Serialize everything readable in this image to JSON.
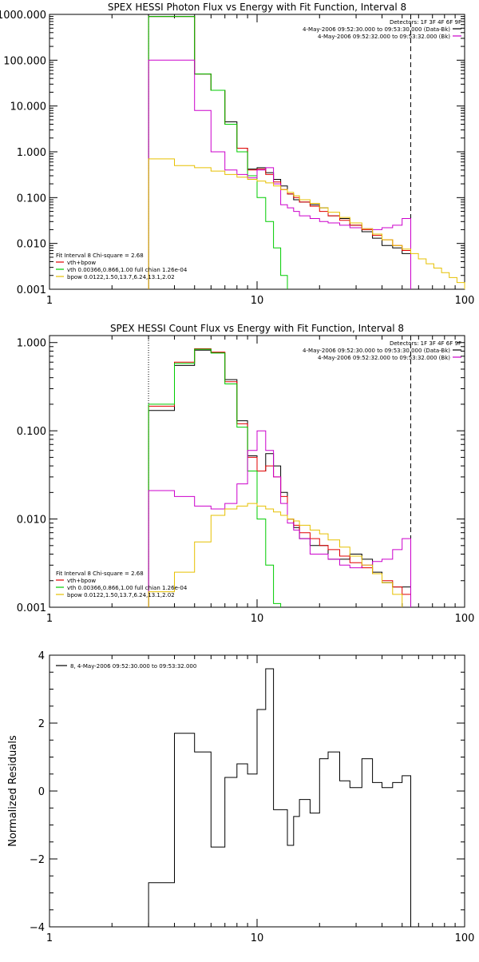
{
  "chart_data": [
    {
      "type": "line",
      "title": "SPEX HESSI Photon Flux vs Energy with Fit Function, Interval 8",
      "xscale": "log",
      "yscale": "log",
      "xlim": [
        1,
        100
      ],
      "ylim": [
        0.001,
        1000
      ],
      "x_tick_labels": [
        "1",
        "10",
        "100"
      ],
      "y_tick_labels": [
        "0.001",
        "0.010",
        "0.100",
        "1.000",
        "10.000",
        "100.000",
        "1000.000"
      ],
      "legend_topright": {
        "header": "Detectors: 1F 3F 4F 6F 9F",
        "entries": [
          {
            "text": "4-May-2006 09:52:30.000 to 09:53:30.000 (Data-Bk)",
            "color": "#000000"
          },
          {
            "text": "4-May-2006 09:52:32.000 to 09:53:32.000 (Bk)",
            "color": "#cc00cc"
          }
        ]
      },
      "legend_bottomleft": {
        "header": "Fit Interval 8   Chi-square = 2.68",
        "entries": [
          {
            "text": "vth+bpow",
            "color": "#e00000"
          },
          {
            "text": "vth 0.00366,0.866,1.00  full chian 1.26e-04",
            "color": "#00cc00"
          },
          {
            "text": "bpow 0.0122,1.50,13.7,6.24,13.1,2.02",
            "color": "#e6c000"
          }
        ]
      },
      "vlines": [
        {
          "x": 3.0,
          "style": "dotted",
          "color": "#000000"
        },
        {
          "x": 55.0,
          "style": "dashed",
          "color": "#000000"
        }
      ],
      "bin_edges": [
        3,
        4,
        5,
        6,
        7,
        8,
        9,
        10,
        11,
        12,
        13,
        14,
        15,
        16,
        18,
        20,
        22,
        25,
        28,
        32,
        36,
        40,
        45,
        50,
        55
      ],
      "series": [
        {
          "name": "Data-Bk",
          "color": "#000000",
          "x_range": [
            3,
            55
          ],
          "values": [
            900,
            900,
            50,
            22,
            4.5,
            1.2,
            0.42,
            0.45,
            0.35,
            0.25,
            0.18,
            0.12,
            0.09,
            0.08,
            0.07,
            0.06,
            0.04,
            0.035,
            0.025,
            0.018,
            0.013,
            0.009,
            0.008,
            0.006
          ]
        },
        {
          "name": "vth+bpow",
          "color": "#e00000",
          "x_range": [
            3,
            55
          ],
          "values": [
            900,
            900,
            50,
            22,
            4.0,
            1.2,
            0.4,
            0.42,
            0.32,
            0.22,
            0.15,
            0.12,
            0.1,
            0.08,
            0.065,
            0.05,
            0.04,
            0.032,
            0.025,
            0.02,
            0.015,
            0.012,
            0.009,
            0.007
          ]
        },
        {
          "name": "vth",
          "color": "#00cc00",
          "x_range": [
            3,
            14
          ],
          "values": [
            900,
            900,
            50,
            22,
            4.0,
            1.0,
            0.3,
            0.1,
            0.03,
            0.008,
            0.002
          ]
        },
        {
          "name": "Bk",
          "color": "#cc00cc",
          "x_range": [
            3,
            55
          ],
          "values": [
            100,
            100,
            8,
            1.0,
            0.4,
            0.32,
            0.27,
            0.4,
            0.45,
            0.2,
            0.07,
            0.06,
            0.05,
            0.04,
            0.035,
            0.03,
            0.028,
            0.025,
            0.022,
            0.021,
            0.02,
            0.022,
            0.025,
            0.035
          ]
        },
        {
          "name": "bpow",
          "color": "#e6c000",
          "x_range": [
            3,
            100
          ],
          "values": [
            0.7,
            0.5,
            0.45,
            0.38,
            0.32,
            0.28,
            0.25,
            0.23,
            0.21,
            0.18,
            0.15,
            0.13,
            0.11,
            0.09,
            0.075,
            0.06,
            0.048,
            0.037,
            0.028,
            0.021,
            0.016,
            0.012,
            0.009,
            0.0075,
            0.006,
            0.0046,
            0.0036,
            0.0029,
            0.0023,
            0.0018,
            0.0014
          ]
        }
      ]
    },
    {
      "type": "line",
      "title": "SPEX HESSI Count Flux vs Energy with Fit Function, Interval 8",
      "xscale": "log",
      "yscale": "log",
      "xlim": [
        1,
        100
      ],
      "ylim": [
        0.001,
        1.2
      ],
      "x_tick_labels": [
        "1",
        "10",
        "100"
      ],
      "y_tick_labels": [
        "0.001",
        "0.010",
        "0.100",
        "1.000"
      ],
      "legend_topright": {
        "header": "Detectors: 1F 3F 4F 6F 9F",
        "entries": [
          {
            "text": "4-May-2006 09:52:30.000 to 09:53:30.000 (Data-Bk)",
            "color": "#000000"
          },
          {
            "text": "4-May-2006 09:52:32.000 to 09:53:32.000 (Bk)",
            "color": "#cc00cc"
          }
        ]
      },
      "legend_bottomleft": {
        "header": "Fit Interval 8   Chi-square = 2.68",
        "entries": [
          {
            "text": "vth+bpow",
            "color": "#e00000"
          },
          {
            "text": "vth 0.00366,0.866,1.00  full chian 1.26e-04",
            "color": "#00cc00"
          },
          {
            "text": "bpow 0.0122,1.50,13.7,6.24,13.1,2.02",
            "color": "#e6c000"
          }
        ]
      },
      "vlines": [
        {
          "x": 3.0,
          "style": "dotted",
          "color": "#000000"
        },
        {
          "x": 55.0,
          "style": "dashed",
          "color": "#000000"
        }
      ],
      "bin_edges": [
        3,
        4,
        5,
        6,
        7,
        8,
        9,
        10,
        11,
        12,
        13,
        14,
        15,
        16,
        18,
        20,
        22,
        25,
        28,
        32,
        36,
        40,
        45,
        50,
        55
      ],
      "series": [
        {
          "name": "Data-Bk",
          "color": "#000000",
          "x_range": [
            3,
            55
          ],
          "values": [
            0.17,
            0.55,
            0.82,
            0.77,
            0.38,
            0.13,
            0.052,
            0.035,
            0.055,
            0.04,
            0.02,
            0.01,
            0.008,
            0.006,
            0.005,
            0.005,
            0.0035,
            0.0035,
            0.004,
            0.0035,
            0.0025,
            0.0019,
            0.0017,
            0.0017
          ]
        },
        {
          "name": "vth+bpow",
          "color": "#e00000",
          "x_range": [
            3,
            55
          ],
          "values": [
            0.19,
            0.6,
            0.85,
            0.78,
            0.36,
            0.12,
            0.05,
            0.035,
            0.04,
            0.03,
            0.018,
            0.01,
            0.0085,
            0.007,
            0.006,
            0.005,
            0.0045,
            0.0038,
            0.0032,
            0.0028,
            0.0024,
            0.002,
            0.0017,
            0.0014
          ]
        },
        {
          "name": "vth",
          "color": "#00cc00",
          "x_range": [
            3,
            13
          ],
          "values": [
            0.2,
            0.58,
            0.84,
            0.76,
            0.34,
            0.11,
            0.035,
            0.01,
            0.003,
            0.0011
          ]
        },
        {
          "name": "Bk",
          "color": "#cc00cc",
          "x_range": [
            3,
            55
          ],
          "values": [
            0.021,
            0.018,
            0.014,
            0.013,
            0.015,
            0.025,
            0.06,
            0.1,
            0.06,
            0.03,
            0.015,
            0.009,
            0.0075,
            0.006,
            0.004,
            0.004,
            0.0035,
            0.003,
            0.0028,
            0.003,
            0.0033,
            0.0035,
            0.0045,
            0.006
          ]
        },
        {
          "name": "bpow",
          "color": "#e6c000",
          "x_range": [
            3,
            50
          ],
          "values": [
            0.0015,
            0.0025,
            0.0055,
            0.011,
            0.013,
            0.014,
            0.015,
            0.014,
            0.013,
            0.012,
            0.011,
            0.01,
            0.0095,
            0.0085,
            0.0075,
            0.0068,
            0.0058,
            0.0048,
            0.0038,
            0.003,
            0.0024,
            0.0019,
            0.0014
          ]
        }
      ]
    },
    {
      "type": "line",
      "title": "",
      "xscale": "log",
      "yscale": "linear",
      "xlim": [
        1,
        100
      ],
      "ylim": [
        -4,
        4
      ],
      "ylabel": "Normalized Residuals",
      "x_tick_labels": [
        "1",
        "10",
        "100"
      ],
      "y_tick_labels": [
        "−4",
        "−2",
        "0",
        "2",
        "4"
      ],
      "y_ticks": [
        -4,
        -2,
        0,
        2,
        4
      ],
      "legend_topleft": {
        "entries": [
          {
            "text": "8,  4-May-2006 09:52:30.000 to 09:53:32.000",
            "color": "#000000"
          }
        ]
      },
      "bin_edges": [
        3,
        4,
        5,
        6,
        7,
        8,
        9,
        10,
        11,
        12,
        13,
        14,
        15,
        16,
        18,
        20,
        22,
        25,
        28,
        32,
        36,
        40,
        45,
        50,
        55
      ],
      "series": [
        {
          "name": "residuals",
          "color": "#000000",
          "x_range": [
            3,
            55
          ],
          "values": [
            -2.7,
            1.7,
            1.15,
            -1.65,
            0.4,
            0.8,
            0.5,
            2.4,
            3.6,
            -0.55,
            -0.55,
            -1.6,
            -0.75,
            -0.25,
            -0.65,
            0.95,
            1.15,
            0.3,
            0.1,
            0.95,
            0.25,
            0.1,
            0.25,
            0.45
          ]
        }
      ]
    }
  ]
}
